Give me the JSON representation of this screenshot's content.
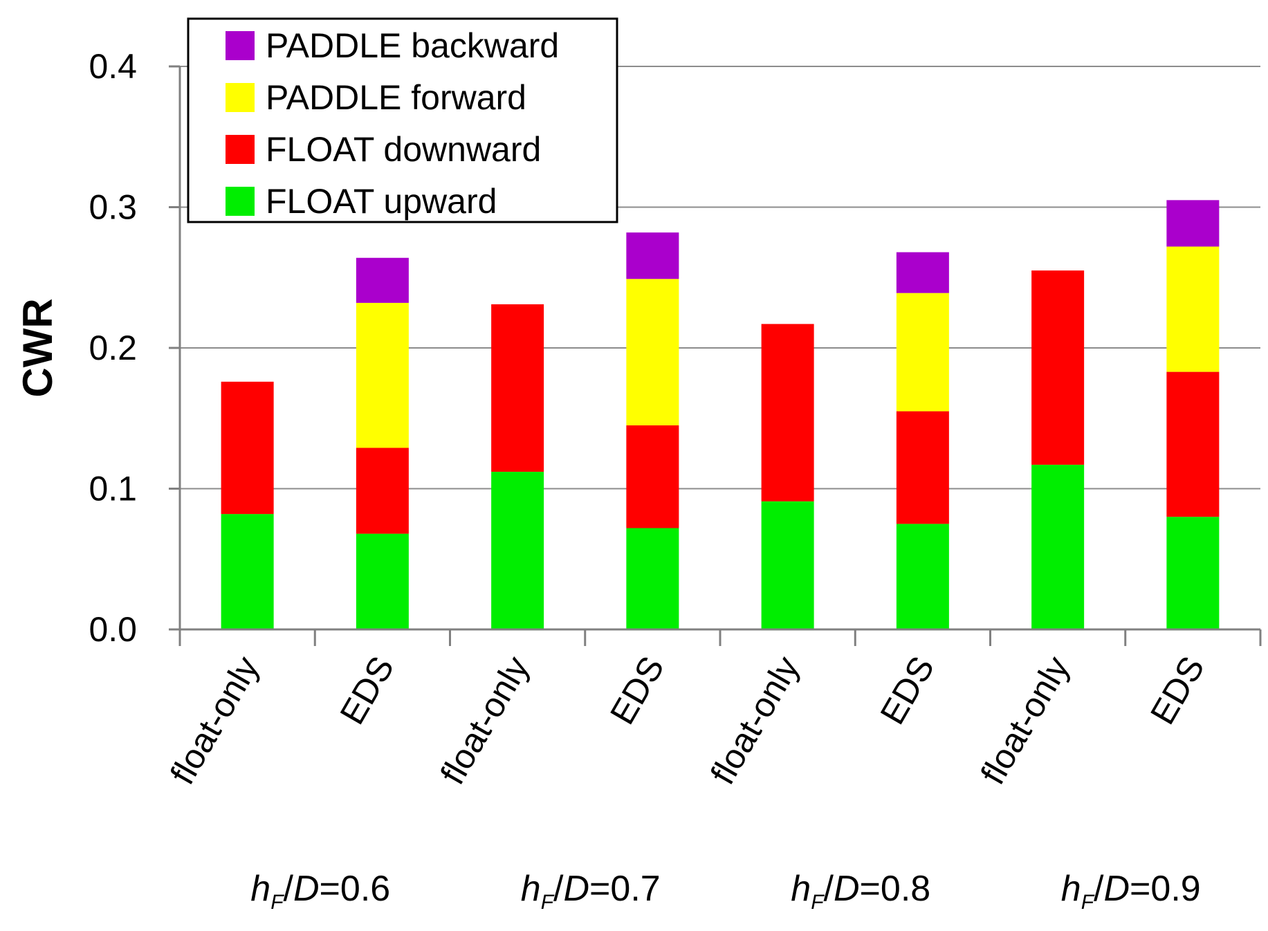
{
  "chart_data": {
    "type": "bar",
    "stacked": true,
    "ylabel": "CWR",
    "ylim": [
      0,
      0.4
    ],
    "yticks": [
      "0.0",
      "0.1",
      "0.2",
      "0.3",
      "0.4"
    ],
    "grid": true,
    "legend_position": "top-left",
    "categories": [
      "float-only",
      "EDS",
      "float-only",
      "EDS",
      "float-only",
      "EDS",
      "float-only",
      "EDS"
    ],
    "groups": [
      {
        "var": "h",
        "sub": "F",
        "sep": "/",
        "den": "D",
        "value": "=0.6"
      },
      {
        "var": "h",
        "sub": "F",
        "sep": "/",
        "den": "D",
        "value": "=0.7"
      },
      {
        "var": "h",
        "sub": "F",
        "sep": "/",
        "den": "D",
        "value": "=0.8"
      },
      {
        "var": "h",
        "sub": "F",
        "sep": "/",
        "den": "D",
        "value": "=0.9"
      }
    ],
    "series": [
      {
        "name": "FLOAT upward",
        "color": "#00ee00",
        "values": [
          0.082,
          0.068,
          0.112,
          0.072,
          0.091,
          0.075,
          0.117,
          0.08
        ]
      },
      {
        "name": "FLOAT downward",
        "color": "#ff0000",
        "values": [
          0.094,
          0.061,
          0.119,
          0.073,
          0.126,
          0.08,
          0.138,
          0.103
        ]
      },
      {
        "name": "PADDLE forward",
        "color": "#ffff00",
        "values": [
          0,
          0.103,
          0,
          0.104,
          0,
          0.084,
          0,
          0.089
        ]
      },
      {
        "name": "PADDLE backward",
        "color": "#aa00cc",
        "values": [
          0,
          0.032,
          0,
          0.033,
          0,
          0.029,
          0,
          0.033
        ]
      }
    ],
    "legend_order": [
      "PADDLE backward",
      "PADDLE forward",
      "FLOAT downward",
      "FLOAT upward"
    ]
  }
}
